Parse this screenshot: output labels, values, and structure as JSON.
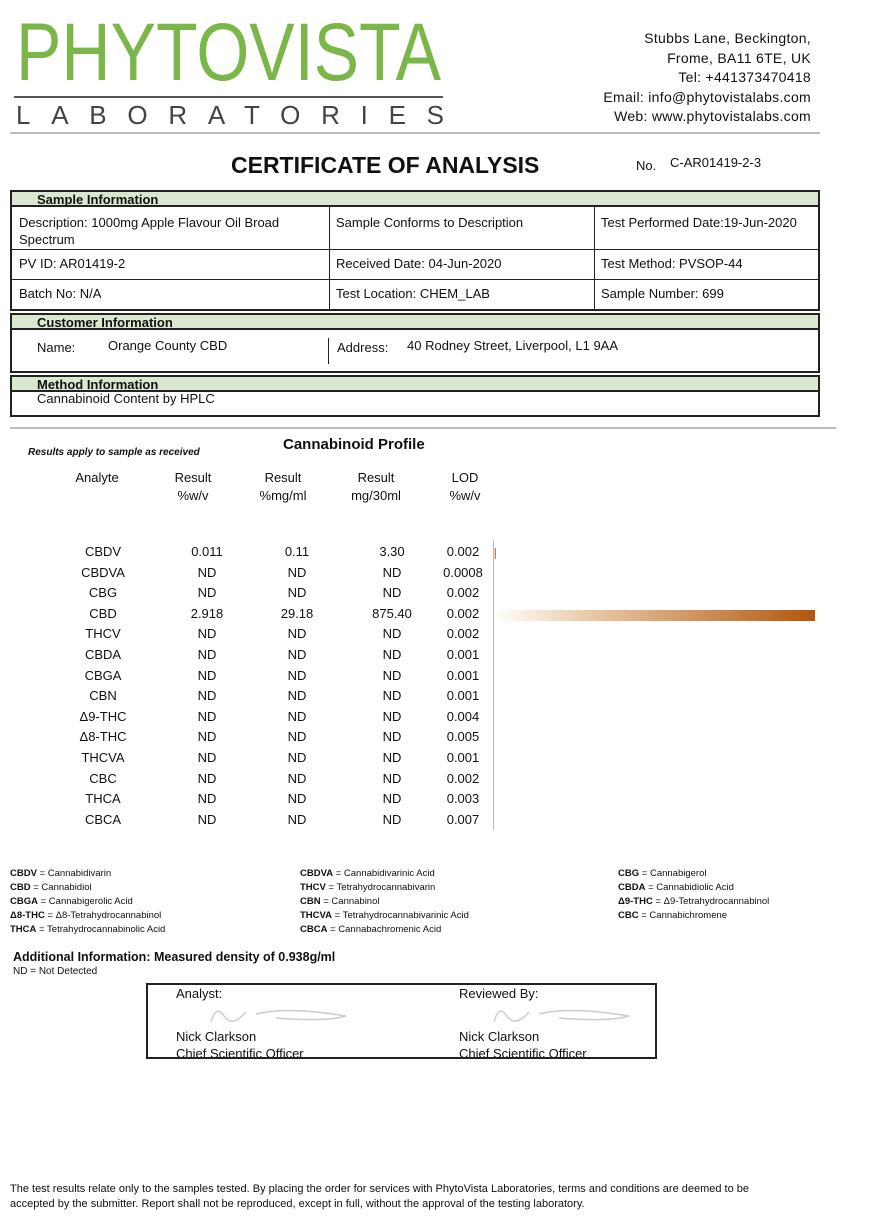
{
  "header": {
    "logo": "PHYTOVISTA",
    "logo_sub": "LABORATORIES",
    "address": [
      "Stubbs Lane, Beckington,",
      "Frome, BA11 6TE, UK",
      "Tel: +441373470418",
      "Email: info@phytovistalabs.com",
      "Web: www.phytovistalabs.com"
    ]
  },
  "title": "CERTIFICATE OF ANALYSIS",
  "cert_no_label": "No.",
  "cert_no": "C-AR01419-2-3",
  "sample_info": {
    "heading": "Sample Information",
    "rows": [
      [
        "Description: 1000mg Apple Flavour Oil Broad Spectrum",
        "Sample Conforms to Description",
        "Test Performed Date:19-Jun-2020"
      ],
      [
        "PV ID: AR01419-2",
        "Received Date: 04-Jun-2020",
        "Test Method: PVSOP-44"
      ],
      [
        "Batch No: N/A",
        "Test Location: CHEM_LAB",
        "Sample Number:  699"
      ]
    ]
  },
  "customer_info": {
    "heading": "Customer Information",
    "name_label": "Name:",
    "name": "Orange County CBD",
    "address_label": "Address:",
    "address": "40 Rodney Street, Liverpool, L1 9AA"
  },
  "method_info": {
    "heading": "Method Information",
    "text": "Cannabinoid Content by HPLC"
  },
  "profile": {
    "note": "Results apply to sample as received",
    "title": "Cannabinoid Profile",
    "columns": [
      [
        "Analyte"
      ],
      [
        "Result",
        "%w/v"
      ],
      [
        "Result",
        "%mg/ml"
      ],
      [
        "Result",
        "mg/30ml"
      ],
      [
        "LOD",
        "%w/v"
      ]
    ],
    "rows": [
      [
        "CBDV",
        "0.011",
        "0.11",
        "3.30",
        "0.002"
      ],
      [
        "CBDVA",
        "ND",
        "ND",
        "ND",
        "0.0008"
      ],
      [
        "CBG",
        "ND",
        "ND",
        "ND",
        "0.002"
      ],
      [
        "CBD",
        "2.918",
        "29.18",
        "875.40",
        "0.002"
      ],
      [
        "THCV",
        "ND",
        "ND",
        "ND",
        "0.002"
      ],
      [
        "CBDA",
        "ND",
        "ND",
        "ND",
        "0.001"
      ],
      [
        "CBGA",
        "ND",
        "ND",
        "ND",
        "0.001"
      ],
      [
        "CBN",
        "ND",
        "ND",
        "ND",
        "0.001"
      ],
      [
        "Δ9-THC",
        "ND",
        "ND",
        "ND",
        "0.004"
      ],
      [
        "Δ8-THC",
        "ND",
        "ND",
        "ND",
        "0.005"
      ],
      [
        "THCVA",
        "ND",
        "ND",
        "ND",
        "0.001"
      ],
      [
        "CBC",
        "ND",
        "ND",
        "ND",
        "0.002"
      ],
      [
        "THCA",
        "ND",
        "ND",
        "ND",
        "0.003"
      ],
      [
        "CBCA",
        "ND",
        "ND",
        "ND",
        "0.007"
      ]
    ]
  },
  "abbreviations": [
    [
      {
        "abbr": "CBDV",
        "text": "= Cannabidivarin"
      },
      {
        "abbr": "CBD",
        "text": "= Cannabidiol"
      },
      {
        "abbr": "CBGA",
        "text": "= Cannabigerolic Acid"
      },
      {
        "abbr": "Δ8-THC",
        "text": "= Δ8-Tetrahydrocannabinol"
      },
      {
        "abbr": "THCA",
        "text": "= Tetrahydrocannabinolic Acid"
      }
    ],
    [
      {
        "abbr": "CBDVA",
        "text": "= Cannabidivarinic Acid"
      },
      {
        "abbr": "THCV",
        "text": "= Tetrahydrocannabivarin"
      },
      {
        "abbr": "CBN",
        "text": "= Cannabinol"
      },
      {
        "abbr": "THCVA",
        "text": "= Tetrahydrocannabivarinic Acid"
      },
      {
        "abbr": "CBCA",
        "text": "= Cannabachromenic Acid"
      }
    ],
    [
      {
        "abbr": "CBG",
        "text": "= Cannabigerol"
      },
      {
        "abbr": "CBDA",
        "text": "= Cannabidiolic Acid"
      },
      {
        "abbr": "Δ9-THC",
        "text": "= Δ9-Tetrahydrocannabinol"
      },
      {
        "abbr": "CBC",
        "text": "= Cannabichromene"
      }
    ]
  ],
  "additional_info": "Additional Information: Measured density of 0.938g/ml",
  "nd_note": "ND = Not Detected",
  "signatures": [
    {
      "role": "Analyst:",
      "name": "Nick Clarkson",
      "title": "Chief Scientific Officer"
    },
    {
      "role": "Reviewed By:",
      "name": "Nick Clarkson",
      "title": "Chief Scientific Officer"
    }
  ],
  "footer": "The test results relate only to the samples tested.  By placing the order for services with PhytoVista Laboratories, terms and conditions are deemed to be accepted by the submitter. Report shall not be reproduced, except in full, without the approval of the testing laboratory."
}
